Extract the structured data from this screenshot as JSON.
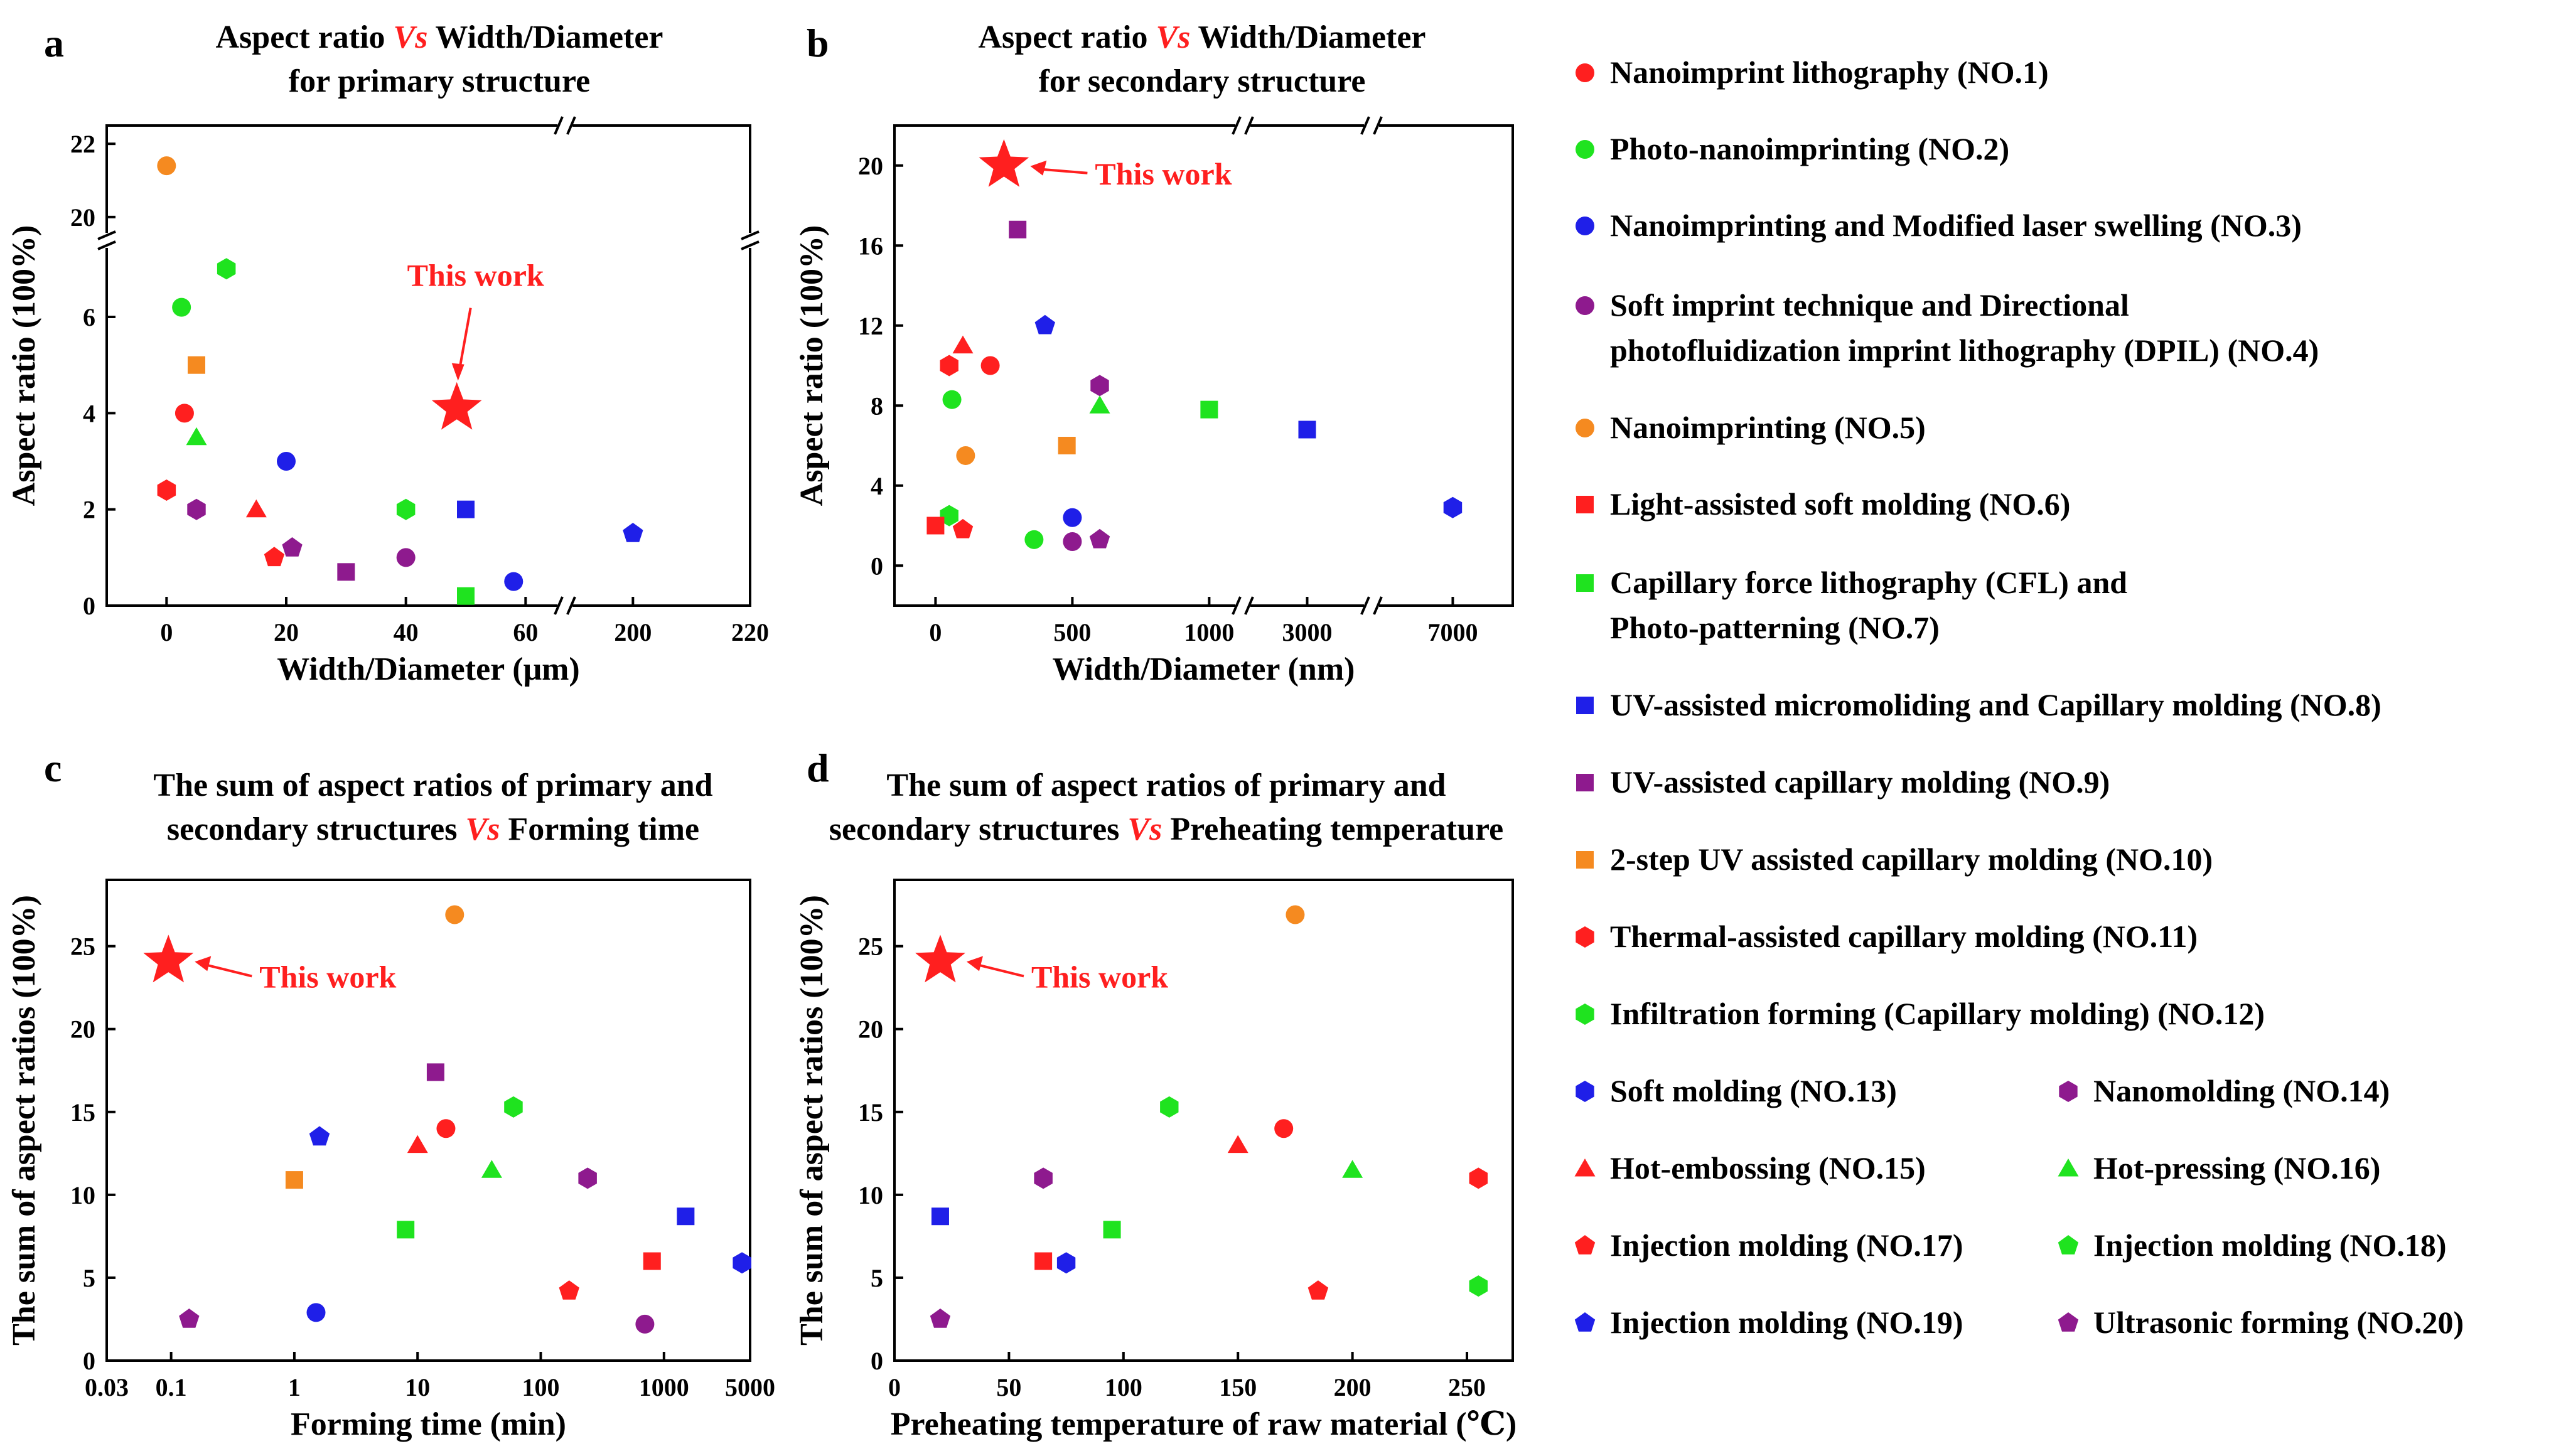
{
  "colors": {
    "red": "#ff1f1f",
    "green": "#1fe31f",
    "blue": "#1f1fe8",
    "purple": "#8e1a8e",
    "orange": "#f58a20"
  },
  "this_work_label": "This work",
  "legend": [
    {
      "label": "Nanoimprint lithography (NO.1)",
      "marker": "circle",
      "color": "red"
    },
    {
      "label": "Photo-nanoimprinting (NO.2)",
      "marker": "circle",
      "color": "green"
    },
    {
      "label": "Nanoimprinting and Modified laser swelling (NO.3)",
      "marker": "circle",
      "color": "blue"
    },
    {
      "label": "Soft imprint technique and Directional",
      "label2": "photofluidization imprint lithography (DPIL) (NO.4)",
      "marker": "circle",
      "color": "purple"
    },
    {
      "label": "Nanoimprinting (NO.5)",
      "marker": "circle",
      "color": "orange"
    },
    {
      "label": "Light-assisted soft molding (NO.6)",
      "marker": "square",
      "color": "red"
    },
    {
      "label": "Capillary force lithography (CFL) and",
      "label2": "Photo-patterning (NO.7)",
      "marker": "square",
      "color": "green"
    },
    {
      "label": "UV-assisted micromoliding and Capillary molding (NO.8)",
      "marker": "square",
      "color": "blue"
    },
    {
      "label": "UV-assisted capillary molding (NO.9)",
      "marker": "square",
      "color": "purple"
    },
    {
      "label": "2-step UV assisted capillary molding (NO.10)",
      "marker": "square",
      "color": "orange"
    },
    {
      "label": "Thermal-assisted capillary molding (NO.11)",
      "marker": "hexagon",
      "color": "red"
    },
    {
      "label": "Infiltration forming (Capillary molding) (NO.12)",
      "marker": "hexagon",
      "color": "green"
    },
    {
      "label": "Soft molding (NO.13)",
      "marker": "hexagon",
      "color": "blue"
    },
    {
      "label": "Nanomolding (NO.14)",
      "marker": "hexagon",
      "color": "purple"
    },
    {
      "label": "Hot-embossing (NO.15)",
      "marker": "triangle",
      "color": "red"
    },
    {
      "label": "Hot-pressing (NO.16)",
      "marker": "triangle",
      "color": "green"
    },
    {
      "label": "Injection molding (NO.17)",
      "marker": "pentagon",
      "color": "red"
    },
    {
      "label": "Injection molding (NO.18)",
      "marker": "pentagon",
      "color": "green"
    },
    {
      "label": "Injection molding (NO.19)",
      "marker": "pentagon",
      "color": "blue"
    },
    {
      "label": "Ultrasonic forming (NO.20)",
      "marker": "pentagon",
      "color": "purple"
    }
  ],
  "chart_data": [
    {
      "panel": "a",
      "type": "scatter",
      "title_line1_pre": "Aspect ratio ",
      "title_vs": "Vs",
      "title_line1_post": " Width/Diameter",
      "title_line2": "for primary structure",
      "xlabel": "Width/Diameter (μm)",
      "ylabel": "Aspect ratio (100%)",
      "x_broken_axis": true,
      "y_broken_axis": true,
      "xticks": [
        "0",
        "20",
        "40",
        "60",
        "200",
        "220"
      ],
      "yticks": [
        "0",
        "2",
        "4",
        "6",
        "20",
        "22"
      ],
      "points": [
        {
          "x": 0,
          "y": 21.4,
          "marker": "circle",
          "color": "orange"
        },
        {
          "x": 2.5,
          "y": 6.2,
          "marker": "circle",
          "color": "green"
        },
        {
          "x": 10,
          "y": 7.0,
          "marker": "hexagon",
          "color": "green"
        },
        {
          "x": 5,
          "y": 5.0,
          "marker": "square",
          "color": "orange"
        },
        {
          "x": 3,
          "y": 4.0,
          "marker": "circle",
          "color": "red"
        },
        {
          "x": 5,
          "y": 3.5,
          "marker": "triangle",
          "color": "green"
        },
        {
          "x": 0,
          "y": 2.4,
          "marker": "hexagon",
          "color": "red"
        },
        {
          "x": 5,
          "y": 2.0,
          "marker": "hexagon",
          "color": "purple"
        },
        {
          "x": 15,
          "y": 2.0,
          "marker": "triangle",
          "color": "red"
        },
        {
          "x": 20,
          "y": 3.0,
          "marker": "circle",
          "color": "blue"
        },
        {
          "x": 18,
          "y": 1.0,
          "marker": "pentagon",
          "color": "red"
        },
        {
          "x": 21,
          "y": 1.2,
          "marker": "pentagon",
          "color": "purple"
        },
        {
          "x": 30,
          "y": 0.7,
          "marker": "square",
          "color": "purple"
        },
        {
          "x": 40,
          "y": 2.0,
          "marker": "hexagon",
          "color": "green"
        },
        {
          "x": 40,
          "y": 1.0,
          "marker": "circle",
          "color": "purple"
        },
        {
          "x": 50,
          "y": 2.0,
          "marker": "square",
          "color": "blue"
        },
        {
          "x": 50,
          "y": 0.2,
          "marker": "square",
          "color": "green"
        },
        {
          "x": 58,
          "y": 0.5,
          "marker": "circle",
          "color": "blue"
        },
        {
          "x": 200,
          "y": 1.5,
          "marker": "pentagon",
          "color": "blue"
        },
        {
          "x": 48.5,
          "y": 4.1,
          "marker": "star",
          "color": "red",
          "this_work": true
        }
      ]
    },
    {
      "panel": "b",
      "type": "scatter",
      "title_line1_pre": "Aspect ratio ",
      "title_vs": "Vs",
      "title_line1_post": " Width/Diameter",
      "title_line2": "for secondary structure",
      "xlabel": "Width/Diameter (nm)",
      "ylabel": "Aspect ratio (100%)",
      "x_broken_axis": true,
      "xticks": [
        "0",
        "500",
        "1000",
        "3000",
        "7000"
      ],
      "yticks": [
        "0",
        "4",
        "8",
        "12",
        "16",
        "20"
      ],
      "ylim": [
        -2,
        22
      ],
      "points": [
        {
          "x": 250,
          "y": 20.0,
          "marker": "star",
          "color": "red",
          "this_work": true
        },
        {
          "x": 300,
          "y": 16.8,
          "marker": "square",
          "color": "purple"
        },
        {
          "x": 400,
          "y": 12.0,
          "marker": "pentagon",
          "color": "blue"
        },
        {
          "x": 50,
          "y": 10.0,
          "marker": "hexagon",
          "color": "red"
        },
        {
          "x": 100,
          "y": 11.0,
          "marker": "triangle",
          "color": "red"
        },
        {
          "x": 200,
          "y": 10.0,
          "marker": "circle",
          "color": "red"
        },
        {
          "x": 600,
          "y": 9.0,
          "marker": "hexagon",
          "color": "purple"
        },
        {
          "x": 600,
          "y": 8.0,
          "marker": "triangle",
          "color": "green"
        },
        {
          "x": 1000,
          "y": 7.8,
          "marker": "square",
          "color": "green"
        },
        {
          "x": 60,
          "y": 8.3,
          "marker": "circle",
          "color": "green"
        },
        {
          "x": 3000,
          "y": 6.8,
          "marker": "square",
          "color": "blue"
        },
        {
          "x": 480,
          "y": 6.0,
          "marker": "square",
          "color": "orange"
        },
        {
          "x": 110,
          "y": 5.5,
          "marker": "circle",
          "color": "orange"
        },
        {
          "x": 7000,
          "y": 2.9,
          "marker": "hexagon",
          "color": "blue"
        },
        {
          "x": 50,
          "y": 2.5,
          "marker": "hexagon",
          "color": "green"
        },
        {
          "x": 0,
          "y": 2.0,
          "marker": "square",
          "color": "red"
        },
        {
          "x": 100,
          "y": 1.8,
          "marker": "pentagon",
          "color": "red"
        },
        {
          "x": 500,
          "y": 2.4,
          "marker": "circle",
          "color": "blue"
        },
        {
          "x": 360,
          "y": 1.3,
          "marker": "circle",
          "color": "green"
        },
        {
          "x": 500,
          "y": 1.2,
          "marker": "circle",
          "color": "purple"
        },
        {
          "x": 600,
          "y": 1.3,
          "marker": "pentagon",
          "color": "purple"
        }
      ]
    },
    {
      "panel": "c",
      "type": "scatter",
      "title_line1": "The sum of aspect ratios of primary and",
      "title_line2_pre": "secondary structures ",
      "title_vs": "Vs",
      "title_line2_post": " Forming time",
      "xlabel": "Forming time (min)",
      "ylabel": "The sum of aspect ratios (100%)",
      "xscale": "log",
      "xlim": [
        0.03,
        5000
      ],
      "xticks": [
        {
          "v": 0.03,
          "t": "0.03"
        },
        {
          "v": 0.1,
          "t": "0.1"
        },
        {
          "v": 1,
          "t": "1"
        },
        {
          "v": 10,
          "t": "10"
        },
        {
          "v": 100,
          "t": "100"
        },
        {
          "v": 1000,
          "t": "1000"
        },
        {
          "v": 5000,
          "t": "5000"
        }
      ],
      "yticks": [
        "0",
        "5",
        "10",
        "15",
        "20",
        "25"
      ],
      "ylim": [
        0,
        29
      ],
      "points": [
        {
          "x": 0.095,
          "y": 24.1,
          "marker": "star",
          "color": "red",
          "this_work": true
        },
        {
          "x": 20,
          "y": 26.9,
          "marker": "circle",
          "color": "orange"
        },
        {
          "x": 14,
          "y": 17.4,
          "marker": "square",
          "color": "purple"
        },
        {
          "x": 1.6,
          "y": 13.5,
          "marker": "pentagon",
          "color": "blue"
        },
        {
          "x": 17,
          "y": 14.0,
          "marker": "circle",
          "color": "red"
        },
        {
          "x": 10,
          "y": 13.0,
          "marker": "triangle",
          "color": "red"
        },
        {
          "x": 60,
          "y": 15.3,
          "marker": "hexagon",
          "color": "green"
        },
        {
          "x": 40,
          "y": 11.5,
          "marker": "triangle",
          "color": "green"
        },
        {
          "x": 1,
          "y": 10.9,
          "marker": "square",
          "color": "orange"
        },
        {
          "x": 240,
          "y": 11.0,
          "marker": "hexagon",
          "color": "purple"
        },
        {
          "x": 8,
          "y": 7.9,
          "marker": "square",
          "color": "green"
        },
        {
          "x": 1500,
          "y": 8.7,
          "marker": "square",
          "color": "blue"
        },
        {
          "x": 4300,
          "y": 5.9,
          "marker": "hexagon",
          "color": "blue"
        },
        {
          "x": 800,
          "y": 6.0,
          "marker": "square",
          "color": "red"
        },
        {
          "x": 170,
          "y": 4.2,
          "marker": "pentagon",
          "color": "red"
        },
        {
          "x": 1.5,
          "y": 2.9,
          "marker": "circle",
          "color": "blue"
        },
        {
          "x": 0.14,
          "y": 2.5,
          "marker": "pentagon",
          "color": "purple"
        },
        {
          "x": 700,
          "y": 2.2,
          "marker": "circle",
          "color": "purple"
        }
      ]
    },
    {
      "panel": "d",
      "type": "scatter",
      "title_line1": "The sum of aspect ratios of primary and",
      "title_line2_pre": "secondary structures ",
      "title_vs": "Vs",
      "title_line2_post": " Preheating temperature",
      "xlabel": "Preheating temperature of raw material (℃)",
      "ylabel": "The sum of aspect ratios (100%)",
      "xlim": [
        0,
        270
      ],
      "xticks": [
        {
          "v": 0,
          "t": "0"
        },
        {
          "v": 50,
          "t": "50"
        },
        {
          "v": 100,
          "t": "100"
        },
        {
          "v": 150,
          "t": "150"
        },
        {
          "v": 200,
          "t": "200"
        },
        {
          "v": 250,
          "t": "250"
        }
      ],
      "yticks": [
        "0",
        "5",
        "10",
        "15",
        "20",
        "25"
      ],
      "ylim": [
        0,
        29
      ],
      "points": [
        {
          "x": 20,
          "y": 24.1,
          "marker": "star",
          "color": "red",
          "this_work": true
        },
        {
          "x": 175,
          "y": 26.9,
          "marker": "circle",
          "color": "orange"
        },
        {
          "x": 120,
          "y": 15.3,
          "marker": "hexagon",
          "color": "green"
        },
        {
          "x": 170,
          "y": 14.0,
          "marker": "circle",
          "color": "red"
        },
        {
          "x": 150,
          "y": 13.0,
          "marker": "triangle",
          "color": "red"
        },
        {
          "x": 200,
          "y": 11.5,
          "marker": "triangle",
          "color": "green"
        },
        {
          "x": 65,
          "y": 11.0,
          "marker": "hexagon",
          "color": "purple"
        },
        {
          "x": 255,
          "y": 11.0,
          "marker": "hexagon",
          "color": "red"
        },
        {
          "x": 20,
          "y": 8.7,
          "marker": "square",
          "color": "blue"
        },
        {
          "x": 95,
          "y": 7.9,
          "marker": "square",
          "color": "green"
        },
        {
          "x": 65,
          "y": 6.0,
          "marker": "square",
          "color": "red"
        },
        {
          "x": 75,
          "y": 5.9,
          "marker": "hexagon",
          "color": "blue"
        },
        {
          "x": 255,
          "y": 4.5,
          "marker": "hexagon",
          "color": "green"
        },
        {
          "x": 185,
          "y": 4.2,
          "marker": "pentagon",
          "color": "red"
        },
        {
          "x": 20,
          "y": 2.5,
          "marker": "pentagon",
          "color": "purple"
        }
      ]
    }
  ]
}
